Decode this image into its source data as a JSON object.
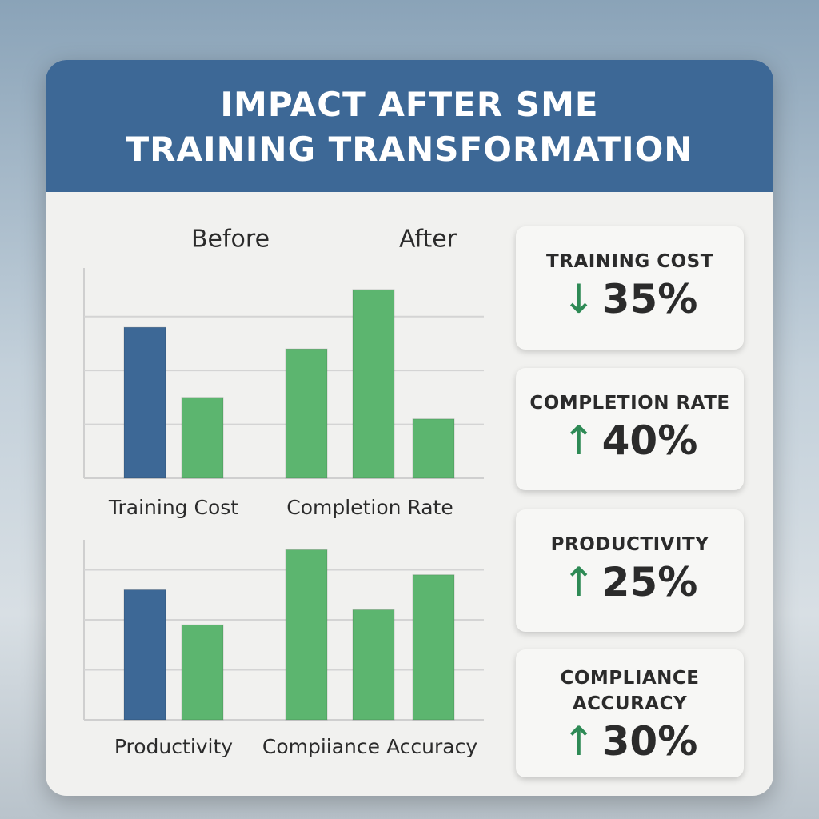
{
  "title_lines": [
    "IMPACT AFTER SME",
    "TRAINING TRANSFORMATION"
  ],
  "legend": [
    {
      "name": "Before",
      "color": "#3d6896"
    },
    {
      "name": "After",
      "color": "#5cb56f"
    }
  ],
  "chart_data": [
    {
      "type": "bar",
      "ylim": [
        0,
        3.9
      ],
      "yticks": [
        1,
        2,
        3
      ],
      "grid": true,
      "groups": [
        {
          "label": "Training Cost",
          "values": [
            2.8,
            1.5
          ],
          "colors": [
            "#3d6896",
            "#5cb56f"
          ]
        },
        {
          "label": "Completion Rate",
          "values": [
            2.4,
            3.5,
            1.1
          ],
          "colors": [
            "#5cb56f",
            "#5cb56f",
            "#5cb56f"
          ]
        }
      ]
    },
    {
      "type": "bar",
      "ylim": [
        0,
        3.6
      ],
      "yticks": [
        1,
        2,
        3
      ],
      "grid": true,
      "groups": [
        {
          "label": "Productivity",
          "values": [
            2.6,
            1.9
          ],
          "colors": [
            "#3d6896",
            "#5cb56f"
          ]
        },
        {
          "label": "Compiiance Accuracy",
          "values": [
            3.4,
            2.2,
            2.9
          ],
          "colors": [
            "#5cb56f",
            "#5cb56f",
            "#5cb56f"
          ]
        }
      ]
    }
  ],
  "kpis": [
    {
      "label_lines": [
        "TRAINING COST"
      ],
      "direction": "down",
      "value": "35%"
    },
    {
      "label_lines": [
        "COMPLETION RATE"
      ],
      "direction": "up",
      "value": "40%"
    },
    {
      "label_lines": [
        "PRODUCTIVITY"
      ],
      "direction": "up",
      "value": "25%"
    },
    {
      "label_lines": [
        "COMPLIANCE",
        "ACCURACY"
      ],
      "direction": "up",
      "value": "30%"
    }
  ]
}
